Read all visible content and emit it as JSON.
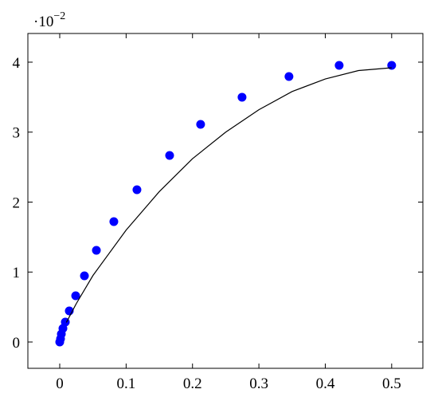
{
  "chart_data": {
    "type": "scatter-line",
    "y_scale_label": {
      "base": "·10",
      "exponent": "−2"
    },
    "xlim": [
      -0.048,
      0.547
    ],
    "ylim": [
      -0.00376,
      0.0441
    ],
    "xticks": [
      0,
      0.1,
      0.2,
      0.3,
      0.4,
      0.5
    ],
    "yticks": [
      {
        "value": 0,
        "label": "0"
      },
      {
        "value": 0.01,
        "label": "1"
      },
      {
        "value": 0.02,
        "label": "2"
      },
      {
        "value": 0.03,
        "label": "3"
      },
      {
        "value": 0.04,
        "label": "4"
      }
    ],
    "series": [
      {
        "kind": "scatter",
        "color": "#0000ff",
        "x": [
          0,
          0.0012,
          0.0024,
          0.0048,
          0.0084,
          0.0144,
          0.024,
          0.0372,
          0.0552,
          0.0815,
          0.1163,
          0.1655,
          0.2122,
          0.2746,
          0.3453,
          0.4209,
          0.5
        ],
        "values": [
          0,
          0.00046,
          0.00114,
          0.00194,
          0.00285,
          0.00444,
          0.00661,
          0.00946,
          0.01311,
          0.01721,
          0.02177,
          0.02667,
          0.03111,
          0.03499,
          0.03795,
          0.03954,
          0.03954
        ]
      },
      {
        "kind": "line",
        "color": "#000000",
        "x": [
          0.01,
          0.025,
          0.05,
          0.1,
          0.15,
          0.2,
          0.25,
          0.3,
          0.35,
          0.4,
          0.45,
          0.5
        ],
        "values": [
          0.0028,
          0.0055,
          0.0095,
          0.016,
          0.0215,
          0.0262,
          0.03,
          0.0332,
          0.0358,
          0.0376,
          0.0388,
          0.0392
        ]
      }
    ]
  }
}
